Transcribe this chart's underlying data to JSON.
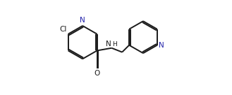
{
  "bg_color": "#ffffff",
  "line_color": "#1a1a1a",
  "n_color": "#2222aa",
  "bond_width": 1.4,
  "figsize": [
    3.29,
    1.36
  ],
  "dpi": 100,
  "xlim": [
    0.0,
    1.0
  ],
  "ylim": [
    0.05,
    0.95
  ]
}
